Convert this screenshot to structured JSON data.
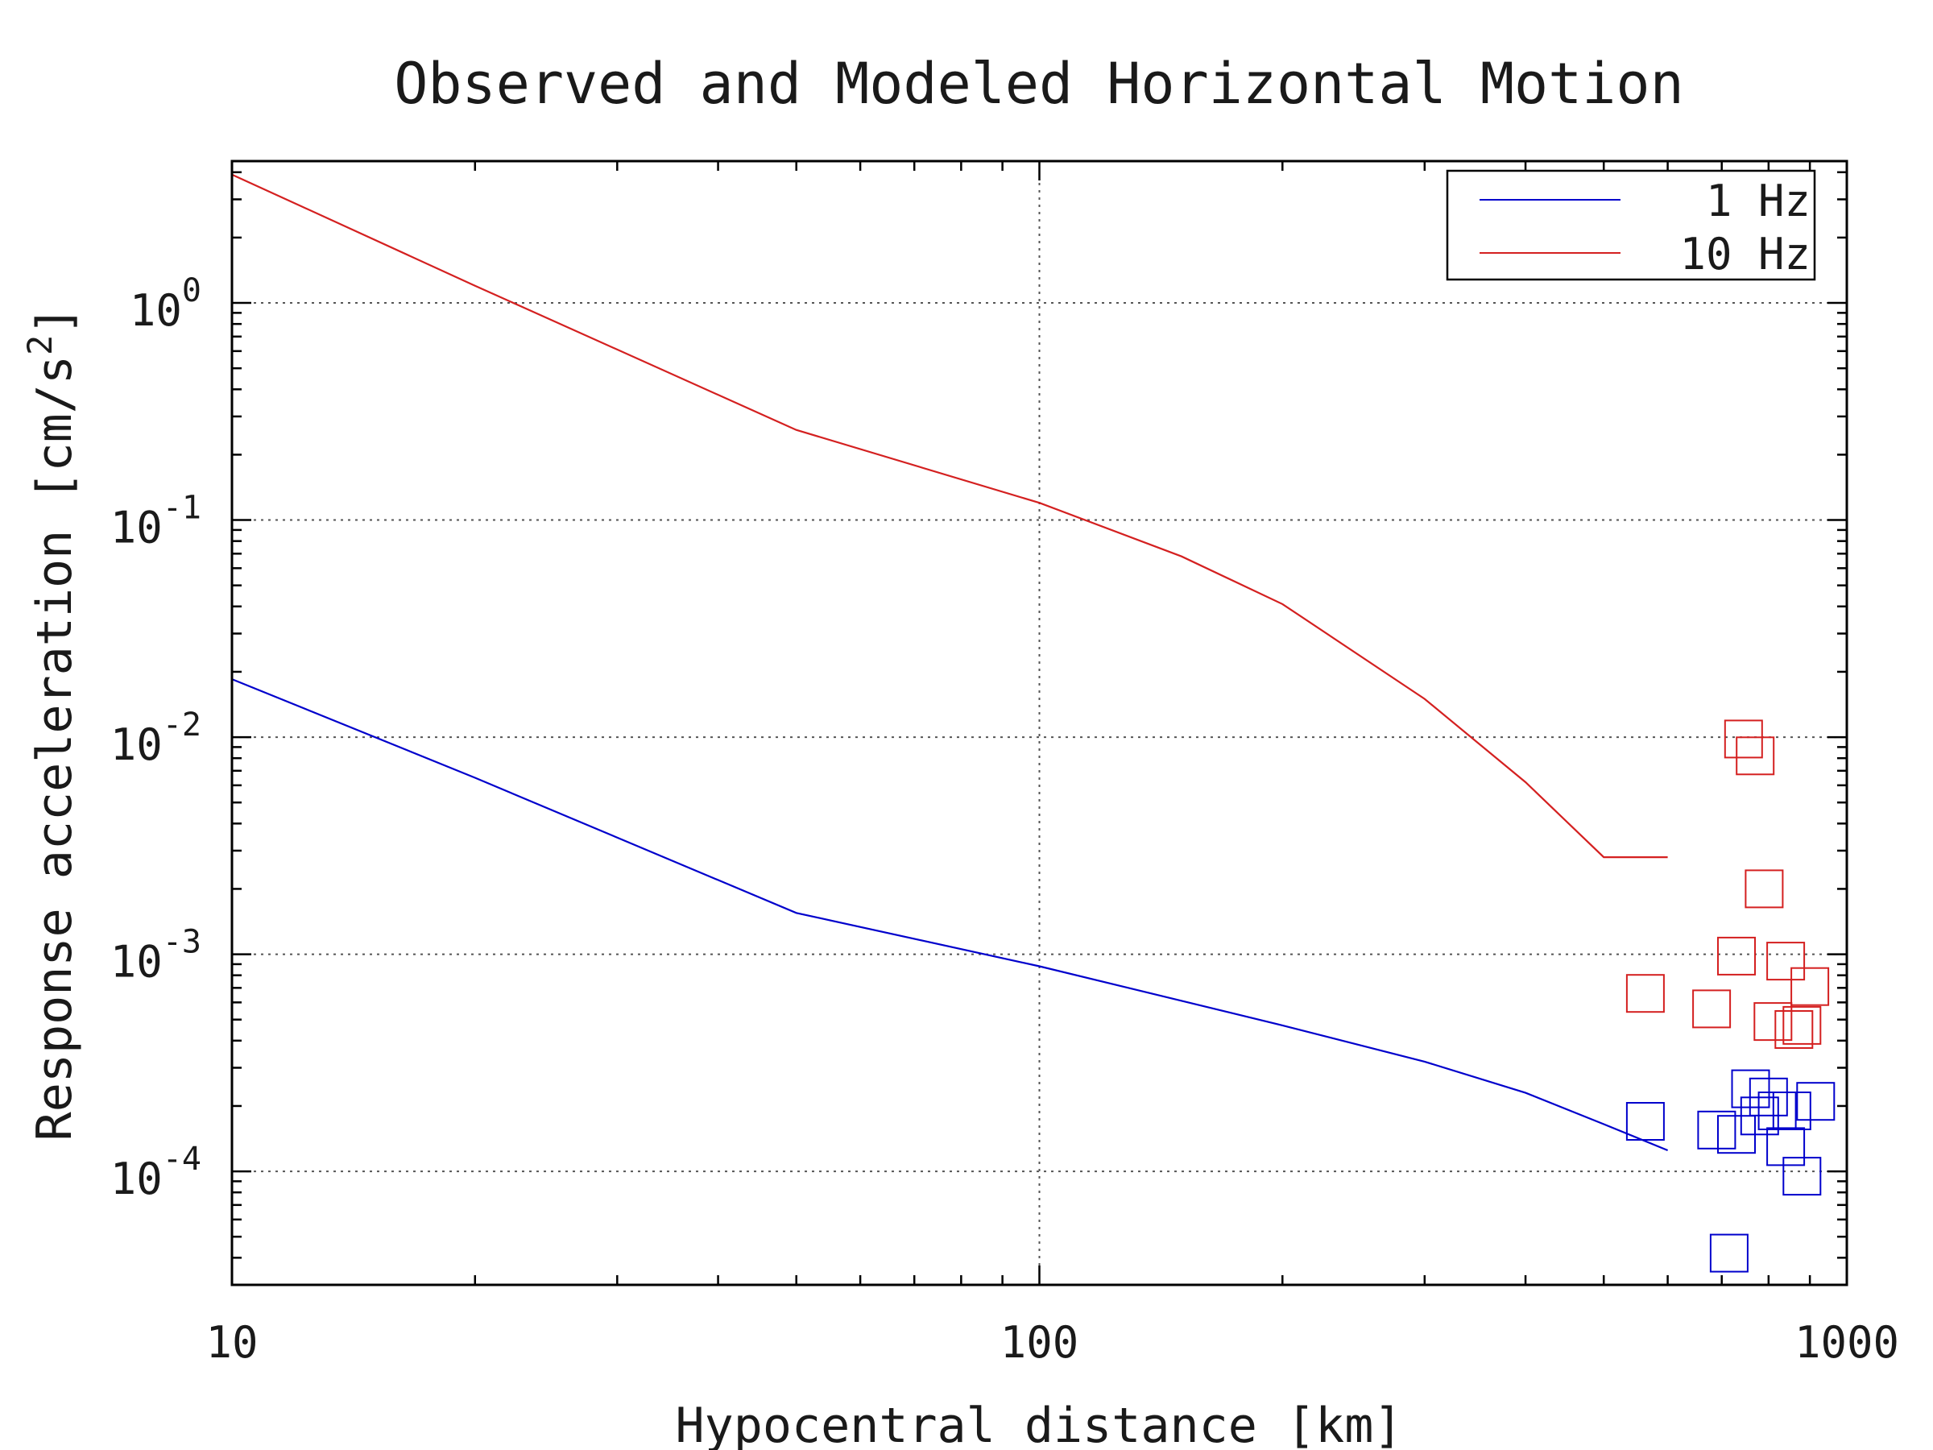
{
  "chart_data": {
    "type": "line",
    "title": "Observed and Modeled Horizontal Motion",
    "xlabel": "Hypocentral distance [km]",
    "ylabel": "Response acceleration [cm/s",
    "ylabel_superscript": "2",
    "ylabel_suffix": "]",
    "xscale": "log",
    "yscale": "log",
    "xlim": [
      10,
      1000
    ],
    "ylim": [
      3e-05,
      4.5
    ],
    "x_tick_labels": [
      "10",
      "100",
      "1000"
    ],
    "y_tick_labels": [
      {
        "base": "10",
        "exp": "0"
      },
      {
        "base": "10",
        "exp": "-1"
      },
      {
        "base": "10",
        "exp": "-2"
      },
      {
        "base": "10",
        "exp": "-3"
      },
      {
        "base": "10",
        "exp": "-4"
      }
    ],
    "grid": true,
    "legend_position": "top-right",
    "series": [
      {
        "name": "1 Hz",
        "color": "#0000cc",
        "x": [
          10,
          20,
          50,
          100,
          200,
          300,
          400,
          500,
          600
        ],
        "y": [
          0.0185,
          0.0065,
          0.00155,
          0.00088,
          0.00047,
          0.00032,
          0.00023,
          0.000165,
          0.000125
        ]
      },
      {
        "name": "10 Hz",
        "color": "#d42020",
        "x": [
          10,
          20,
          50,
          100,
          150,
          200,
          300,
          400,
          500,
          600
        ],
        "y": [
          3.9,
          1.2,
          0.26,
          0.12,
          0.068,
          0.041,
          0.015,
          0.0062,
          0.0028,
          0.0028
        ]
      }
    ],
    "scatter": [
      {
        "name": "1 Hz observed",
        "color": "#0000cc",
        "points": [
          [
            563,
            0.00017
          ],
          [
            690,
            0.000155
          ],
          [
            715,
            4.2e-05
          ],
          [
            730,
            0.000148
          ],
          [
            760,
            0.00024
          ],
          [
            780,
            0.00018
          ],
          [
            800,
            0.00022
          ],
          [
            820,
            0.00019
          ],
          [
            840,
            0.00013
          ],
          [
            855,
            0.00019
          ],
          [
            880,
            9.5e-05
          ],
          [
            915,
            0.00021
          ]
        ]
      },
      {
        "name": "10 Hz observed",
        "color": "#d42020",
        "points": [
          [
            563,
            0.00066
          ],
          [
            680,
            0.00056
          ],
          [
            730,
            0.00098
          ],
          [
            745,
            0.0098
          ],
          [
            770,
            0.0082
          ],
          [
            790,
            0.002
          ],
          [
            810,
            0.00049
          ],
          [
            840,
            0.00093
          ],
          [
            860,
            0.00045
          ],
          [
            880,
            0.00047
          ],
          [
            900,
            0.00071
          ]
        ]
      }
    ]
  }
}
